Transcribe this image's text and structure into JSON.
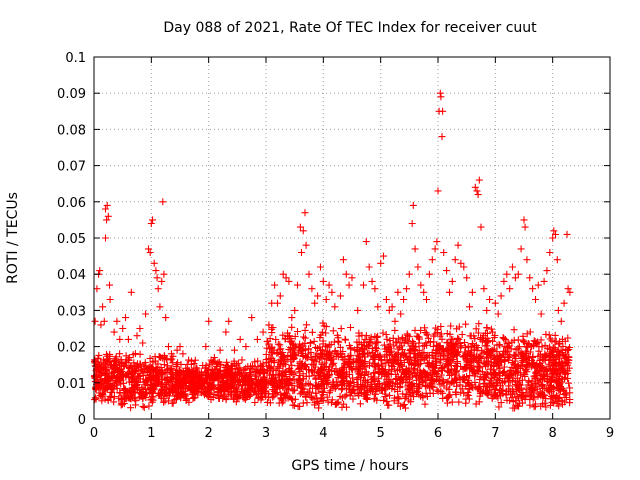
{
  "chart_data": {
    "type": "scatter",
    "title": "Day 088 of 2021, Rate Of TEC Index for receiver cuut",
    "xlabel": "GPS time / hours",
    "ylabel": "ROTI / TECUs",
    "xlim": [
      0,
      9
    ],
    "ylim": [
      0,
      0.1
    ],
    "xticks": [
      "0",
      "1",
      "2",
      "3",
      "4",
      "5",
      "6",
      "7",
      "8",
      "9"
    ],
    "yticks": [
      "0",
      "0.01",
      "0.02",
      "0.03",
      "0.04",
      "0.05",
      "0.06",
      "0.07",
      "0.08",
      "0.09",
      "0.1"
    ],
    "grid": true,
    "marker": "plus",
    "series": [
      {
        "color": "#ff0000",
        "points": [
          [
            0.02,
            0.027
          ],
          [
            0.05,
            0.036
          ],
          [
            0.08,
            0.04
          ],
          [
            0.1,
            0.041
          ],
          [
            0.12,
            0.026
          ],
          [
            0.15,
            0.031
          ],
          [
            0.18,
            0.027
          ],
          [
            0.2,
            0.05
          ],
          [
            0.2,
            0.058
          ],
          [
            0.22,
            0.055
          ],
          [
            0.23,
            0.059
          ],
          [
            0.25,
            0.056
          ],
          [
            0.27,
            0.037
          ],
          [
            0.28,
            0.033
          ],
          [
            0.35,
            0.024
          ],
          [
            0.4,
            0.027
          ],
          [
            0.45,
            0.022
          ],
          [
            0.5,
            0.025
          ],
          [
            0.55,
            0.028
          ],
          [
            0.6,
            0.022
          ],
          [
            0.65,
            0.035
          ],
          [
            0.75,
            0.023
          ],
          [
            0.8,
            0.025
          ],
          [
            0.85,
            0.021
          ],
          [
            0.9,
            0.029
          ],
          [
            0.95,
            0.047
          ],
          [
            0.98,
            0.046
          ],
          [
            1.0,
            0.054
          ],
          [
            1.02,
            0.055
          ],
          [
            1.05,
            0.043
          ],
          [
            1.08,
            0.041
          ],
          [
            1.1,
            0.039
          ],
          [
            1.12,
            0.036
          ],
          [
            1.15,
            0.031
          ],
          [
            1.18,
            0.038
          ],
          [
            1.2,
            0.06
          ],
          [
            1.22,
            0.04
          ],
          [
            1.25,
            0.028
          ],
          [
            1.3,
            0.02
          ],
          [
            1.35,
            0.018
          ],
          [
            1.45,
            0.019
          ],
          [
            1.5,
            0.02
          ],
          [
            1.55,
            0.018
          ],
          [
            1.6,
            0.014
          ],
          [
            1.7,
            0.016
          ],
          [
            1.8,
            0.013
          ],
          [
            1.95,
            0.02
          ],
          [
            2.0,
            0.027
          ],
          [
            2.1,
            0.017
          ],
          [
            2.2,
            0.019
          ],
          [
            2.3,
            0.024
          ],
          [
            2.35,
            0.027
          ],
          [
            2.45,
            0.019
          ],
          [
            2.55,
            0.022
          ],
          [
            2.65,
            0.02
          ],
          [
            2.75,
            0.028
          ],
          [
            2.85,
            0.022
          ],
          [
            2.95,
            0.024
          ],
          [
            3.05,
            0.026
          ],
          [
            3.1,
            0.032
          ],
          [
            3.15,
            0.037
          ],
          [
            3.2,
            0.032
          ],
          [
            3.25,
            0.034
          ],
          [
            3.3,
            0.04
          ],
          [
            3.35,
            0.039
          ],
          [
            3.4,
            0.038
          ],
          [
            3.45,
            0.028
          ],
          [
            3.5,
            0.03
          ],
          [
            3.55,
            0.037
          ],
          [
            3.6,
            0.053
          ],
          [
            3.62,
            0.046
          ],
          [
            3.65,
            0.052
          ],
          [
            3.68,
            0.057
          ],
          [
            3.7,
            0.048
          ],
          [
            3.75,
            0.04
          ],
          [
            3.8,
            0.036
          ],
          [
            3.85,
            0.032
          ],
          [
            3.9,
            0.034
          ],
          [
            3.95,
            0.042
          ],
          [
            4.0,
            0.038
          ],
          [
            4.05,
            0.033
          ],
          [
            4.1,
            0.037
          ],
          [
            4.15,
            0.035
          ],
          [
            4.2,
            0.031
          ],
          [
            4.3,
            0.034
          ],
          [
            4.35,
            0.044
          ],
          [
            4.4,
            0.04
          ],
          [
            4.45,
            0.037
          ],
          [
            4.5,
            0.039
          ],
          [
            4.6,
            0.03
          ],
          [
            4.7,
            0.037
          ],
          [
            4.75,
            0.049
          ],
          [
            4.8,
            0.042
          ],
          [
            4.85,
            0.038
          ],
          [
            4.9,
            0.036
          ],
          [
            4.95,
            0.031
          ],
          [
            5.0,
            0.043
          ],
          [
            5.05,
            0.045
          ],
          [
            5.1,
            0.033
          ],
          [
            5.15,
            0.03
          ],
          [
            5.2,
            0.031
          ],
          [
            5.25,
            0.027
          ],
          [
            5.3,
            0.035
          ],
          [
            5.35,
            0.029
          ],
          [
            5.4,
            0.033
          ],
          [
            5.45,
            0.036
          ],
          [
            5.5,
            0.04
          ],
          [
            5.55,
            0.054
          ],
          [
            5.57,
            0.059
          ],
          [
            5.6,
            0.047
          ],
          [
            5.65,
            0.042
          ],
          [
            5.7,
            0.037
          ],
          [
            5.75,
            0.035
          ],
          [
            5.8,
            0.033
          ],
          [
            5.85,
            0.04
          ],
          [
            5.9,
            0.044
          ],
          [
            5.95,
            0.047
          ],
          [
            5.98,
            0.049
          ],
          [
            6.0,
            0.063
          ],
          [
            6.02,
            0.085
          ],
          [
            6.04,
            0.09
          ],
          [
            6.05,
            0.089
          ],
          [
            6.07,
            0.078
          ],
          [
            6.08,
            0.085
          ],
          [
            6.1,
            0.046
          ],
          [
            6.15,
            0.041
          ],
          [
            6.2,
            0.035
          ],
          [
            6.25,
            0.038
          ],
          [
            6.3,
            0.044
          ],
          [
            6.35,
            0.048
          ],
          [
            6.4,
            0.043
          ],
          [
            6.45,
            0.042
          ],
          [
            6.5,
            0.039
          ],
          [
            6.55,
            0.031
          ],
          [
            6.6,
            0.035
          ],
          [
            6.65,
            0.064
          ],
          [
            6.68,
            0.063
          ],
          [
            6.7,
            0.062
          ],
          [
            6.72,
            0.066
          ],
          [
            6.75,
            0.053
          ],
          [
            6.8,
            0.036
          ],
          [
            6.85,
            0.03
          ],
          [
            6.9,
            0.033
          ],
          [
            6.95,
            0.024
          ],
          [
            7.0,
            0.032
          ],
          [
            7.05,
            0.029
          ],
          [
            7.1,
            0.034
          ],
          [
            7.15,
            0.038
          ],
          [
            7.2,
            0.04
          ],
          [
            7.25,
            0.036
          ],
          [
            7.3,
            0.042
          ],
          [
            7.35,
            0.039
          ],
          [
            7.4,
            0.04
          ],
          [
            7.45,
            0.047
          ],
          [
            7.5,
            0.055
          ],
          [
            7.52,
            0.053
          ],
          [
            7.55,
            0.044
          ],
          [
            7.6,
            0.039
          ],
          [
            7.65,
            0.036
          ],
          [
            7.7,
            0.033
          ],
          [
            7.75,
            0.037
          ],
          [
            7.8,
            0.029
          ],
          [
            7.85,
            0.038
          ],
          [
            7.9,
            0.041
          ],
          [
            7.95,
            0.046
          ],
          [
            8.0,
            0.05
          ],
          [
            8.02,
            0.052
          ],
          [
            8.05,
            0.051
          ],
          [
            8.08,
            0.044
          ],
          [
            8.1,
            0.03
          ],
          [
            8.15,
            0.027
          ],
          [
            8.2,
            0.032
          ],
          [
            8.25,
            0.051
          ],
          [
            8.27,
            0.036
          ],
          [
            8.3,
            0.035
          ]
        ]
      }
    ]
  }
}
